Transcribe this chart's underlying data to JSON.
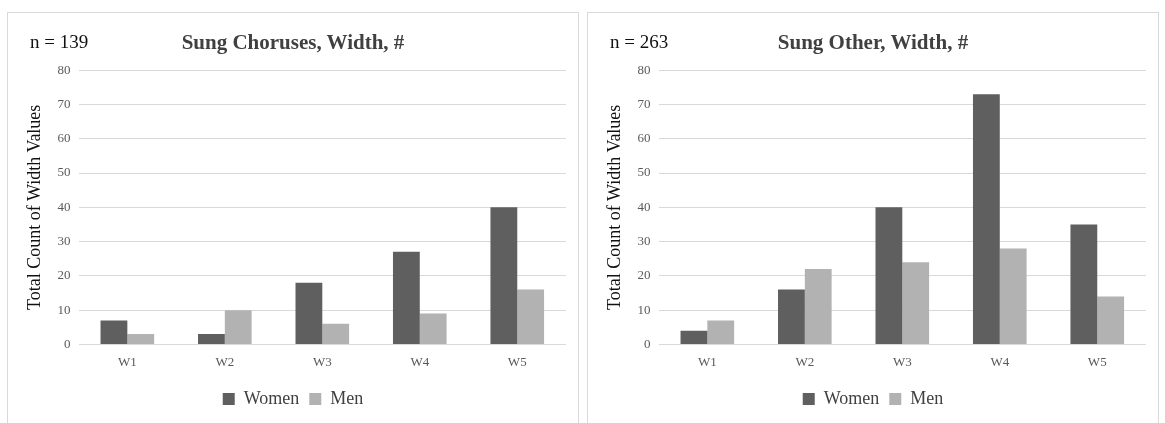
{
  "chart_data": [
    {
      "type": "bar",
      "title": "Sung Choruses, Width, #",
      "annotations": [
        "n = 139"
      ],
      "ylabel": "Total Count of Width Values",
      "categories": [
        "W1",
        "W2",
        "W3",
        "W4",
        "W5"
      ],
      "series": [
        {
          "name": "Women",
          "color": "#5f5f5f",
          "values": [
            7,
            3,
            18,
            27,
            40
          ]
        },
        {
          "name": "Men",
          "color": "#b2b2b2",
          "values": [
            3,
            10,
            6,
            9,
            16
          ]
        }
      ],
      "ylim": [
        0,
        80
      ],
      "yticks": [
        0,
        10,
        20,
        30,
        40,
        50,
        60,
        70,
        80
      ],
      "grid": "y",
      "legend": "bottom"
    },
    {
      "type": "bar",
      "title": "Sung Other, Width, #",
      "annotations": [
        "n = 263"
      ],
      "ylabel": "Total Count of Width Values",
      "categories": [
        "W1",
        "W2",
        "W3",
        "W4",
        "W5"
      ],
      "series": [
        {
          "name": "Women",
          "color": "#5f5f5f",
          "values": [
            4,
            16,
            40,
            73,
            35
          ]
        },
        {
          "name": "Men",
          "color": "#b2b2b2",
          "values": [
            7,
            22,
            24,
            28,
            14
          ]
        }
      ],
      "ylim": [
        0,
        80
      ],
      "yticks": [
        0,
        10,
        20,
        30,
        40,
        50,
        60,
        70,
        80
      ],
      "grid": "y",
      "legend": "bottom"
    }
  ]
}
